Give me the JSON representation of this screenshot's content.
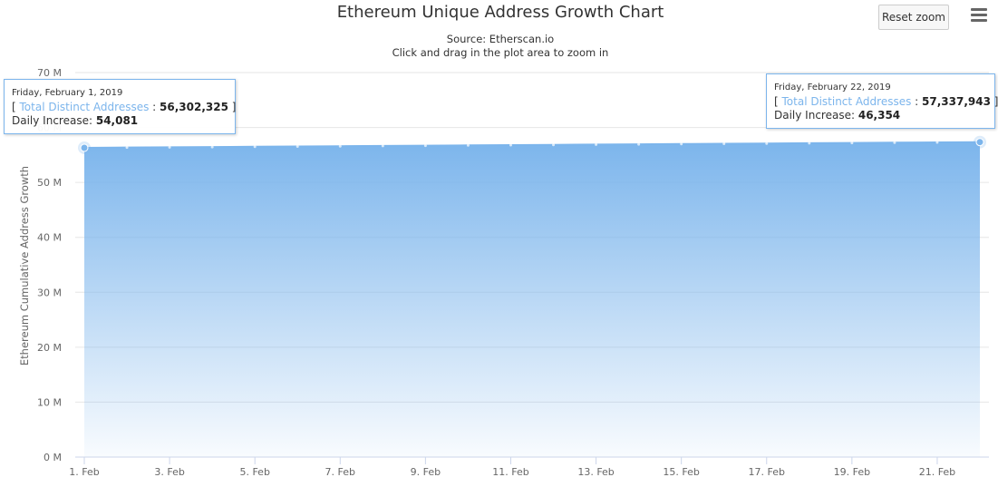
{
  "chart_data": {
    "type": "area",
    "title": "Ethereum Unique Address Growth Chart",
    "subtitle_source": "Source: Etherscan.io",
    "subtitle_hint": "Click and drag in the plot area to zoom in",
    "ylabel": "Ethereum Cumulative Address Growth",
    "xlabel": "",
    "x_ticks": [
      "1. Feb",
      "3. Feb",
      "5. Feb",
      "7. Feb",
      "9. Feb",
      "11. Feb",
      "13. Feb",
      "15. Feb",
      "17. Feb",
      "19. Feb",
      "21. Feb"
    ],
    "y_ticks": [
      "0 M",
      "10 M",
      "20 M",
      "30 M",
      "40 M",
      "50 M",
      "60 M",
      "70 M"
    ],
    "ylim": [
      0,
      70000000
    ],
    "grid": true,
    "series": [
      {
        "name": "Total Distinct Addresses",
        "color": "#7cb5ec",
        "x": [
          "2019-02-01",
          "2019-02-02",
          "2019-02-03",
          "2019-02-04",
          "2019-02-05",
          "2019-02-06",
          "2019-02-07",
          "2019-02-08",
          "2019-02-09",
          "2019-02-10",
          "2019-02-11",
          "2019-02-12",
          "2019-02-13",
          "2019-02-14",
          "2019-02-15",
          "2019-02-16",
          "2019-02-17",
          "2019-02-18",
          "2019-02-19",
          "2019-02-20",
          "2019-02-21",
          "2019-02-22"
        ],
        "values": [
          56302325,
          56352000,
          56400000,
          56448000,
          56497000,
          56547000,
          56596000,
          56645000,
          56694000,
          56743000,
          56792000,
          56842000,
          56891000,
          56940000,
          56989000,
          57038000,
          57087000,
          57138000,
          57188000,
          57239000,
          57291589,
          57337943
        ]
      }
    ]
  },
  "toolbar": {
    "reset_zoom_label": "Reset zoom",
    "menu_icon": "hamburger-menu-icon"
  },
  "tooltips": [
    {
      "date": "Friday, February 1, 2019",
      "series_label": "Total Distinct Addresses",
      "total_value": "56,302,325",
      "increase_label": "Daily Increase:",
      "increase_value": "54,081"
    },
    {
      "date": "Friday, February 22, 2019",
      "series_label": "Total Distinct Addresses",
      "total_value": "57,337,943",
      "increase_label": "Daily Increase:",
      "increase_value": "46,354"
    }
  ]
}
